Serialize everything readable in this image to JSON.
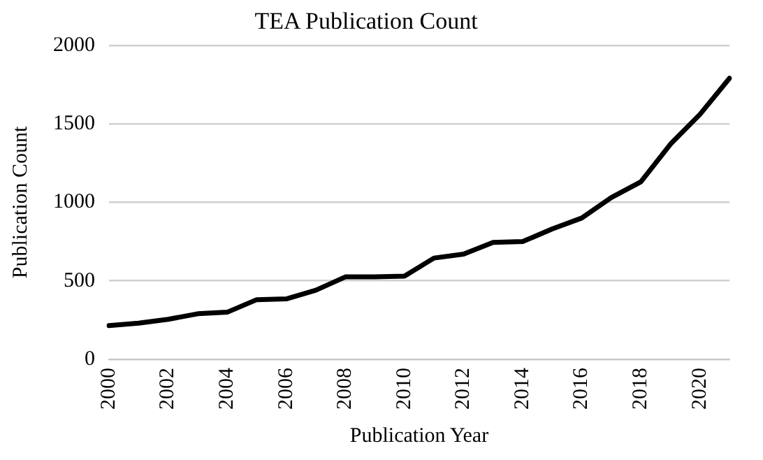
{
  "chart_data": {
    "type": "line",
    "title": "TEA Publication Count",
    "xlabel": "Publication Year",
    "ylabel": "Publication Count",
    "categories": [
      "2000",
      null,
      "2002",
      null,
      "2004",
      null,
      "2006",
      null,
      "2008",
      null,
      "2010",
      null,
      "2012",
      null,
      "2014",
      null,
      "2016",
      null,
      "2018",
      null,
      "2020",
      null
    ],
    "series": [
      {
        "color": "#000000",
        "values": [
          215,
          230,
          255,
          290,
          300,
          380,
          385,
          440,
          525,
          525,
          530,
          645,
          670,
          745,
          750,
          830,
          900,
          1030,
          1130,
          1370,
          1560,
          1790
        ]
      }
    ],
    "ylim": [
      0,
      2000
    ],
    "yticks": [
      0,
      500,
      1000,
      1500,
      2000
    ],
    "grid": "y",
    "legend": false,
    "marker": "none",
    "line_style": "solid"
  }
}
